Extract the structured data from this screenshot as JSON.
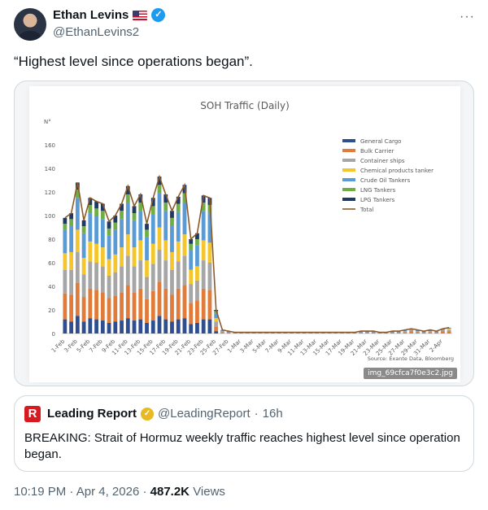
{
  "author": {
    "name": "Ethan Levins",
    "handle": "@EthanLevins2"
  },
  "tweet": {
    "text": "“Highest level since operations began”."
  },
  "chart_data": {
    "type": "bar",
    "stacked": true,
    "title": "SOH Traffic (Daily)",
    "ylabel": "N°",
    "ylim": [
      0,
      160
    ],
    "yticks": [
      0,
      20,
      40,
      60,
      80,
      100,
      120,
      140,
      160
    ],
    "grid": false,
    "legend_position": "right",
    "x_tick_labels": [
      "1-Feb",
      "3-Feb",
      "5-Feb",
      "7-Feb",
      "9-Feb",
      "11-Feb",
      "13-Feb",
      "15-Feb",
      "17-Feb",
      "19-Feb",
      "21-Feb",
      "23-Feb",
      "25-Feb",
      "27-Feb",
      "1-Mar",
      "3-Mar",
      "5-Mar",
      "7-Mar",
      "9-Mar",
      "11-Mar",
      "13-Mar",
      "15-Mar",
      "17-Mar",
      "19-Mar",
      "21-Mar",
      "23-Mar",
      "25-Mar",
      "27-Mar",
      "29-Mar",
      "31-Mar",
      "2-Apr"
    ],
    "totals": [
      98,
      102,
      128,
      96,
      115,
      112,
      110,
      95,
      100,
      110,
      125,
      108,
      118,
      93,
      115,
      133,
      118,
      104,
      116,
      126,
      80,
      85,
      117,
      115,
      20,
      3,
      2,
      1,
      1,
      1,
      1,
      1,
      1,
      1,
      1,
      1,
      1,
      1,
      1,
      1,
      1,
      1,
      1,
      1,
      1,
      1,
      1,
      2,
      2,
      2,
      1,
      1,
      2,
      2,
      3,
      4,
      3,
      2,
      3,
      2,
      4,
      5
    ],
    "series_colors": [
      "#2e4e8f",
      "#e07b39",
      "#a6a6a6",
      "#f5c62b",
      "#5b9bd5",
      "#70ad47",
      "#1f3864"
    ],
    "series": [
      {
        "name": "General Cargo",
        "color": "#2e4e8f",
        "values": [
          12,
          10,
          15,
          10,
          13,
          12,
          11,
          9,
          10,
          11,
          13,
          11,
          12,
          9,
          11,
          15,
          12,
          10,
          12,
          13,
          8,
          9,
          12,
          12,
          2,
          0,
          0,
          0,
          0,
          0,
          0,
          0,
          0,
          0,
          0,
          0,
          0,
          0,
          0,
          0,
          0,
          0,
          0,
          0,
          0,
          0,
          0,
          0,
          0,
          0,
          0,
          0,
          0,
          0,
          0,
          0,
          0,
          0,
          0,
          0,
          0,
          0
        ]
      },
      {
        "name": "Bulk Carrier",
        "color": "#e07b39",
        "values": [
          22,
          23,
          28,
          21,
          25,
          25,
          24,
          21,
          22,
          24,
          28,
          24,
          26,
          20,
          25,
          29,
          26,
          23,
          26,
          28,
          18,
          19,
          26,
          25,
          4,
          1,
          1,
          0,
          0,
          0,
          0,
          0,
          0,
          0,
          0,
          0,
          0,
          0,
          0,
          0,
          0,
          0,
          0,
          0,
          0,
          0,
          0,
          1,
          1,
          1,
          0,
          0,
          1,
          1,
          1,
          2,
          1,
          1,
          1,
          1,
          2,
          2
        ]
      },
      {
        "name": "Container ships",
        "color": "#a6a6a6",
        "values": [
          20,
          21,
          26,
          19,
          23,
          23,
          22,
          19,
          20,
          22,
          25,
          22,
          24,
          19,
          23,
          27,
          24,
          21,
          23,
          25,
          16,
          17,
          24,
          23,
          4,
          1,
          0,
          0,
          0,
          0,
          0,
          0,
          0,
          0,
          0,
          0,
          0,
          0,
          0,
          0,
          0,
          0,
          0,
          0,
          0,
          0,
          0,
          0,
          0,
          0,
          0,
          0,
          0,
          0,
          1,
          1,
          1,
          0,
          1,
          0,
          1,
          1
        ]
      },
      {
        "name": "Chemical products tanker",
        "color": "#f5c62b",
        "values": [
          14,
          15,
          19,
          14,
          17,
          16,
          16,
          14,
          15,
          16,
          18,
          16,
          17,
          14,
          17,
          19,
          17,
          15,
          17,
          18,
          12,
          12,
          17,
          17,
          3,
          0,
          0,
          0,
          0,
          0,
          0,
          0,
          0,
          0,
          0,
          0,
          0,
          0,
          0,
          0,
          0,
          0,
          0,
          0,
          0,
          0,
          0,
          0,
          0,
          0,
          0,
          0,
          0,
          0,
          0,
          0,
          0,
          0,
          0,
          0,
          0,
          1
        ]
      },
      {
        "name": "Crude Oil Tankers",
        "color": "#5b9bd5",
        "values": [
          20,
          22,
          27,
          21,
          24,
          24,
          24,
          20,
          21,
          24,
          27,
          23,
          25,
          20,
          25,
          29,
          25,
          22,
          25,
          27,
          17,
          18,
          25,
          25,
          4,
          1,
          1,
          1,
          1,
          1,
          1,
          1,
          1,
          1,
          1,
          1,
          1,
          1,
          1,
          1,
          1,
          1,
          1,
          1,
          1,
          1,
          1,
          1,
          1,
          1,
          1,
          1,
          1,
          1,
          1,
          1,
          1,
          1,
          1,
          1,
          1,
          1
        ]
      },
      {
        "name": "LNG Tankers",
        "color": "#70ad47",
        "values": [
          5,
          6,
          7,
          6,
          7,
          6,
          7,
          6,
          6,
          7,
          7,
          6,
          7,
          6,
          7,
          7,
          7,
          7,
          7,
          8,
          5,
          5,
          7,
          7,
          2,
          0,
          0,
          0,
          0,
          0,
          0,
          0,
          0,
          0,
          0,
          0,
          0,
          0,
          0,
          0,
          0,
          0,
          0,
          0,
          0,
          0,
          0,
          0,
          0,
          0,
          0,
          0,
          0,
          0,
          0,
          0,
          0,
          0,
          0,
          0,
          0,
          0
        ]
      },
      {
        "name": "LPG Tankers",
        "color": "#1f3864",
        "values": [
          5,
          5,
          6,
          5,
          6,
          6,
          6,
          6,
          6,
          6,
          7,
          6,
          7,
          5,
          7,
          7,
          7,
          6,
          6,
          7,
          4,
          5,
          6,
          6,
          1,
          0,
          0,
          0,
          0,
          0,
          0,
          0,
          0,
          0,
          0,
          0,
          0,
          0,
          0,
          0,
          0,
          0,
          0,
          0,
          0,
          0,
          0,
          0,
          0,
          0,
          0,
          0,
          0,
          0,
          0,
          0,
          0,
          0,
          0,
          0,
          0,
          0
        ]
      }
    ],
    "total_series": {
      "name": "Total",
      "color": "#8b5a2b"
    },
    "source": "Source: Exante Data, Bloomberg"
  },
  "media": {
    "image_label": "img_69cfca7f0e3c2.jpg"
  },
  "quote": {
    "name": "Leading Report",
    "handle": "@LeadingReport",
    "separator": "·",
    "time": "16h",
    "text": "BREAKING: Strait of Hormuz weekly traffic reaches highest level since operation began."
  },
  "meta": {
    "time": "10:19 PM",
    "date": "Apr 4, 2026",
    "views_count": "487.2K",
    "views_label": "Views"
  }
}
